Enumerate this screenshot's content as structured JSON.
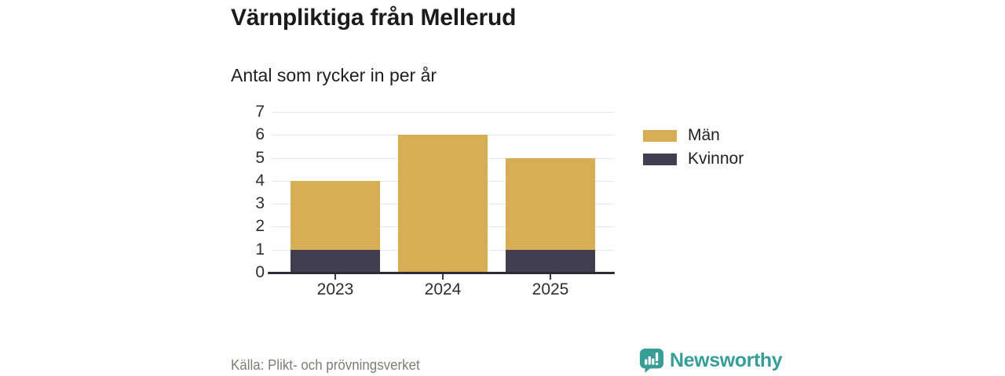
{
  "header": {
    "title": "Värnpliktiga från Mellerud",
    "subtitle": "Antal som rycker in per år"
  },
  "chart_data": {
    "type": "bar",
    "stacked": true,
    "categories": [
      "2023",
      "2024",
      "2025"
    ],
    "series": [
      {
        "name": "Män",
        "color": "#D8AE55",
        "values": [
          3,
          6,
          4
        ]
      },
      {
        "name": "Kvinnor",
        "color": "#413F4F",
        "values": [
          1,
          0,
          1
        ]
      }
    ],
    "stack_order_bottom_to_top": [
      "Kvinnor",
      "Män"
    ],
    "totals": [
      4,
      6,
      5
    ],
    "ylim": [
      0,
      7
    ],
    "yticks": [
      0,
      1,
      2,
      3,
      4,
      5,
      6,
      7
    ],
    "grid": true,
    "legend_position": "right",
    "title": "Värnpliktiga från Mellerud",
    "xlabel": "",
    "ylabel": ""
  },
  "footer": {
    "source": "Källa: Plikt- och prövningsverket",
    "brand": "Newsworthy"
  },
  "colors": {
    "men_bar": "#D8AE55",
    "women_bar": "#413F4F",
    "brand_teal": "#379D97",
    "axis_line": "#2D2C35",
    "gridline": "#E8E8E8",
    "title_text": "#1B1B1B",
    "source_text": "#7C7C79"
  },
  "icons": {
    "brand_icon": "bar-chart-speech-bubble-icon"
  }
}
